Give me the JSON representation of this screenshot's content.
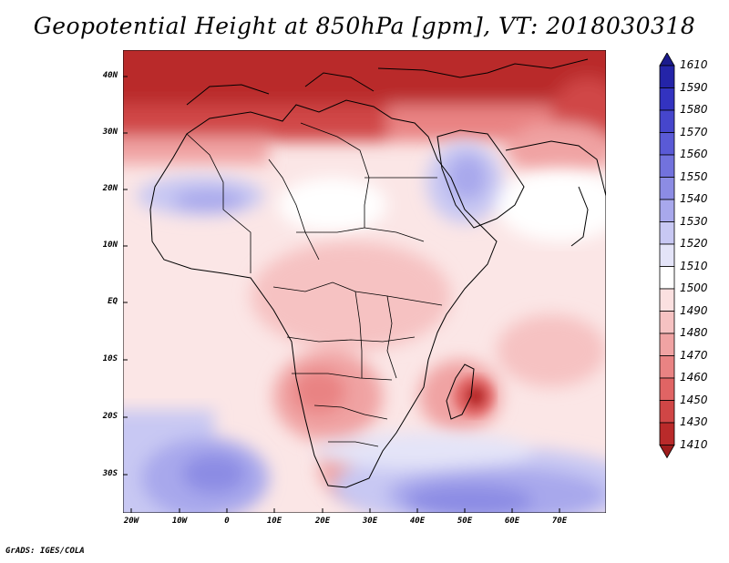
{
  "title": "Geopotential Height at 850hPa [gpm], VT: 2018030318",
  "credit": "GrADS: IGES/COLA",
  "map": {
    "variable": "Geopotential Height",
    "level": "850hPa",
    "units": "gpm",
    "valid_time": "2018030318",
    "lat_labels": [
      "40N",
      "30N",
      "20N",
      "10N",
      "EQ",
      "10S",
      "20S",
      "30S"
    ],
    "lon_labels": [
      "20W",
      "10W",
      "0",
      "10E",
      "20E",
      "30E",
      "40E",
      "50E",
      "60E",
      "70E"
    ],
    "colorbar": {
      "labels": [
        "1610",
        "1590",
        "1580",
        "1570",
        "1560",
        "1550",
        "1540",
        "1530",
        "1520",
        "1510",
        "1500",
        "1490",
        "1480",
        "1470",
        "1460",
        "1450",
        "1430",
        "1410"
      ],
      "colors": [
        "#1b1b8c",
        "#2424a8",
        "#3333c0",
        "#4646cc",
        "#5a5ad6",
        "#7272dd",
        "#8c8ce4",
        "#a8a8ec",
        "#c8c8f3",
        "#e4e4f8",
        "#ffffff",
        "#fbe0e0",
        "#f6c2c2",
        "#f0a3a3",
        "#e98383",
        "#e06464",
        "#d04646",
        "#b92a2a",
        "#9e1c1c"
      ]
    }
  }
}
